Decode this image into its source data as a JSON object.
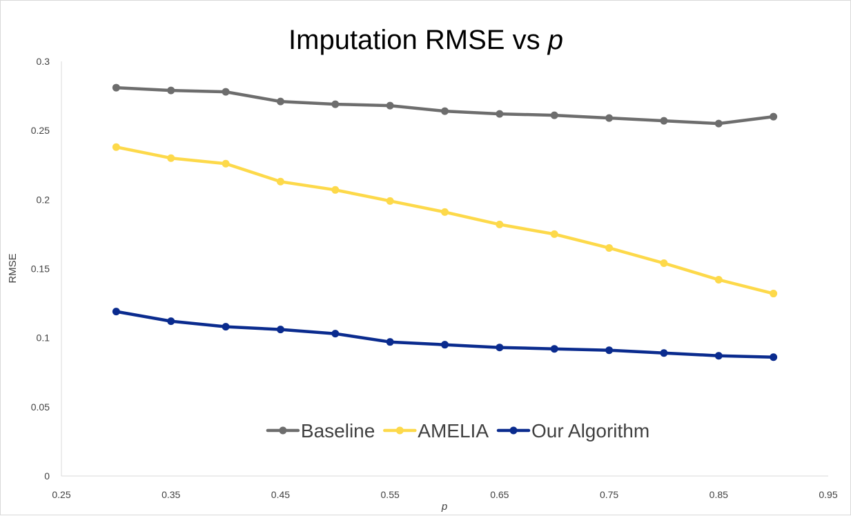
{
  "chart_data": {
    "type": "line",
    "title": "Imputation RMSE vs",
    "title_italic": "p",
    "xlabel": "p",
    "ylabel": "RMSE",
    "xlim": [
      0.25,
      0.95
    ],
    "ylim": [
      0,
      0.3
    ],
    "x_ticks": [
      0.25,
      0.35,
      0.45,
      0.55,
      0.65,
      0.75,
      0.85,
      0.95
    ],
    "x_tick_labels": [
      "0.25",
      "0.35",
      "0.45",
      "0.55",
      "0.65",
      "0.75",
      "0.85",
      "0.95"
    ],
    "y_ticks": [
      0,
      0.05,
      0.1,
      0.15,
      0.2,
      0.25,
      0.3
    ],
    "y_tick_labels": [
      "0",
      "0.05",
      "0.1",
      "0.15",
      "0.2",
      "0.25",
      "0.3"
    ],
    "grid": false,
    "legend_position": "bottom-center",
    "x": [
      0.3,
      0.35,
      0.4,
      0.45,
      0.5,
      0.55,
      0.6,
      0.65,
      0.7,
      0.75,
      0.8,
      0.85,
      0.9
    ],
    "series": [
      {
        "name": "Baseline",
        "color": "#6d6d6d",
        "values": [
          0.281,
          0.279,
          0.278,
          0.271,
          0.269,
          0.268,
          0.264,
          0.262,
          0.261,
          0.259,
          0.257,
          0.255,
          0.26
        ]
      },
      {
        "name": "AMELIA",
        "color": "#fdd94a",
        "values": [
          0.238,
          0.23,
          0.226,
          0.213,
          0.207,
          0.199,
          0.191,
          0.182,
          0.175,
          0.165,
          0.154,
          0.142,
          0.132
        ]
      },
      {
        "name": "Our Algorithm",
        "color": "#0a2b8e",
        "values": [
          0.119,
          0.112,
          0.108,
          0.106,
          0.103,
          0.097,
          0.095,
          0.093,
          0.092,
          0.091,
          0.089,
          0.087,
          0.086
        ]
      }
    ]
  }
}
